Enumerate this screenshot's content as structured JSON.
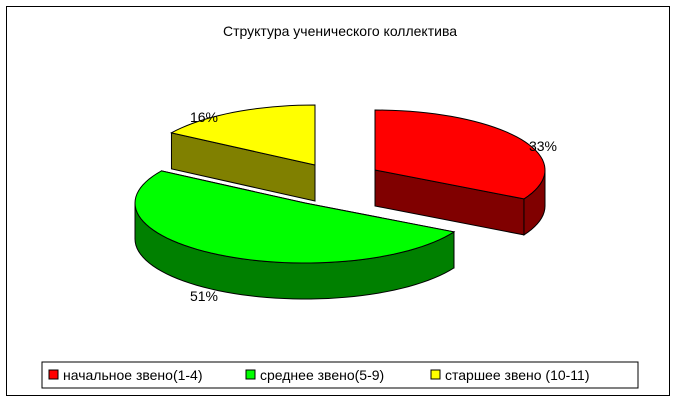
{
  "chart_data": {
    "type": "pie",
    "title": "Структура ученического коллектива",
    "categories": [
      "начальное звено(1-4)",
      "среднее звено(5-9)",
      "старшее звено (10-11)"
    ],
    "values": [
      33,
      51,
      16
    ],
    "labels": [
      "33%",
      "51%",
      "16%"
    ],
    "colors": [
      "#ff0000",
      "#00ff00",
      "#ffff00"
    ],
    "side_colors": [
      "#800000",
      "#008000",
      "#808000"
    ],
    "exploded": true,
    "three_d": true,
    "legend_position": "bottom"
  }
}
